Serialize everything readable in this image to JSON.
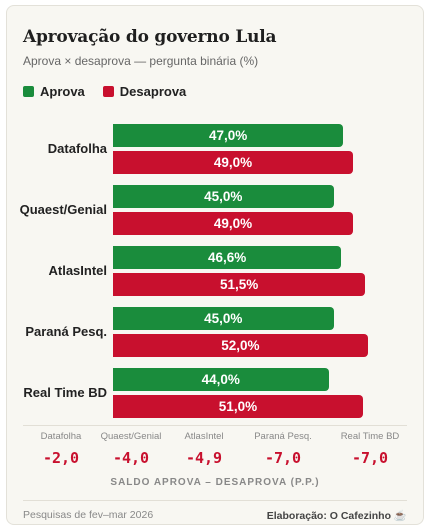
{
  "title": "Aprovação do governo Lula",
  "subtitle": "Aprova × desaprova — pergunta binária (%)",
  "legend": {
    "approve": "Aprova",
    "disapprove": "Desaprova"
  },
  "colors": {
    "approve": "#1a8c3c",
    "disapprove": "#c8102e",
    "card_bg": "#f8f7f2"
  },
  "chart_data": {
    "type": "bar",
    "orientation": "horizontal",
    "categories": [
      "Datafolha",
      "Quaest/Genial",
      "AtlasIntel",
      "Paraná Pesq.",
      "Real Time BD"
    ],
    "series": [
      {
        "name": "Aprova",
        "values": [
          47.0,
          45.0,
          46.6,
          45.0,
          44.0
        ],
        "labels": [
          "47,0%",
          "45,0%",
          "46,6%",
          "45,0%",
          "44,0%"
        ]
      },
      {
        "name": "Desaprova",
        "values": [
          49.0,
          49.0,
          51.5,
          52.0,
          51.0
        ],
        "labels": [
          "49,0%",
          "49,0%",
          "51,5%",
          "52,0%",
          "51,0%"
        ]
      }
    ],
    "xlim": [
      0,
      60
    ],
    "grid": false,
    "legend_position": "top-left"
  },
  "spreads": {
    "caption": "SALDO APROVA – DESAPROVA (P.P.)",
    "items": [
      {
        "name": "Datafolha",
        "value": "-2,0"
      },
      {
        "name": "Quaest/Genial",
        "value": "-4,0"
      },
      {
        "name": "AtlasIntel",
        "value": "-4,9"
      },
      {
        "name": "Paraná Pesq.",
        "value": "-7,0"
      },
      {
        "name": "Real Time BD",
        "value": "-7,0"
      }
    ]
  },
  "footer": {
    "source": "Pesquisas de fev–mar 2026",
    "credit": "Elaboração: O Cafezinho ☕"
  }
}
